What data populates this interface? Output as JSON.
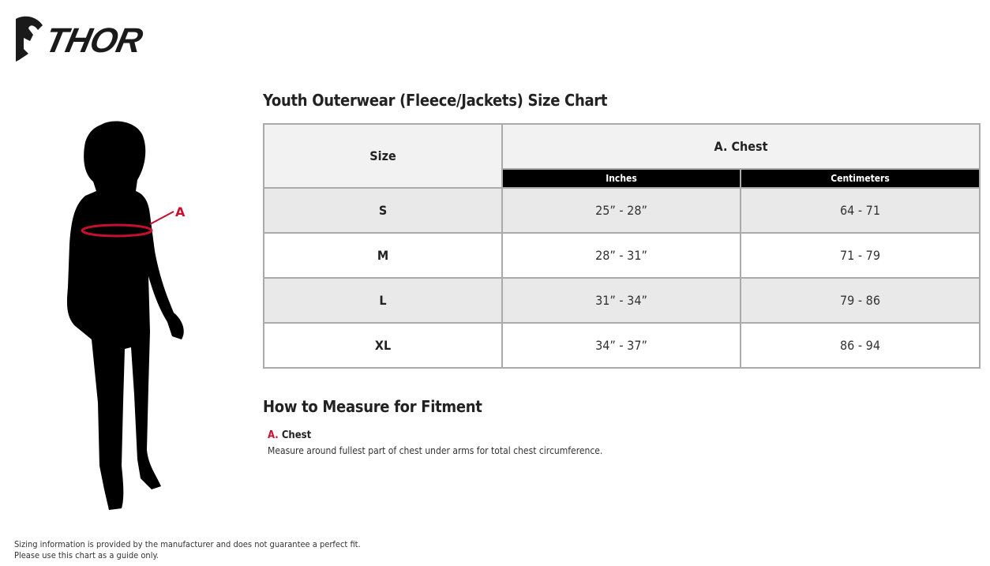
{
  "brand": {
    "logo_text": "THOR"
  },
  "chart": {
    "title": "Youth Outerwear (Fleece/Jackets) Size Chart",
    "headers": {
      "size": "Size",
      "group": "A. Chest",
      "inches": "Inches",
      "centimeters": "Centimeters"
    },
    "rows": [
      {
        "size": "S",
        "inches": "25” - 28”",
        "cm": "64 - 71"
      },
      {
        "size": "M",
        "inches": "28” - 31”",
        "cm": "71 - 79"
      },
      {
        "size": "L",
        "inches": "31” - 34”",
        "cm": "79 - 86"
      },
      {
        "size": "XL",
        "inches": "34” - 37”",
        "cm": "86 - 94"
      }
    ]
  },
  "figure": {
    "marker_label": "A",
    "accent_color": "#c8102e"
  },
  "howto": {
    "title": "How to Measure for Fitment",
    "items": [
      {
        "letter": "A.",
        "label": "Chest",
        "description": "Measure around fullest part of chest under arms for total chest circumference."
      }
    ]
  },
  "disclaimer": {
    "line1": "Sizing information is provided by the manufacturer and does not guarantee a perfect fit.",
    "line2": "Please use this chart as a guide only."
  }
}
